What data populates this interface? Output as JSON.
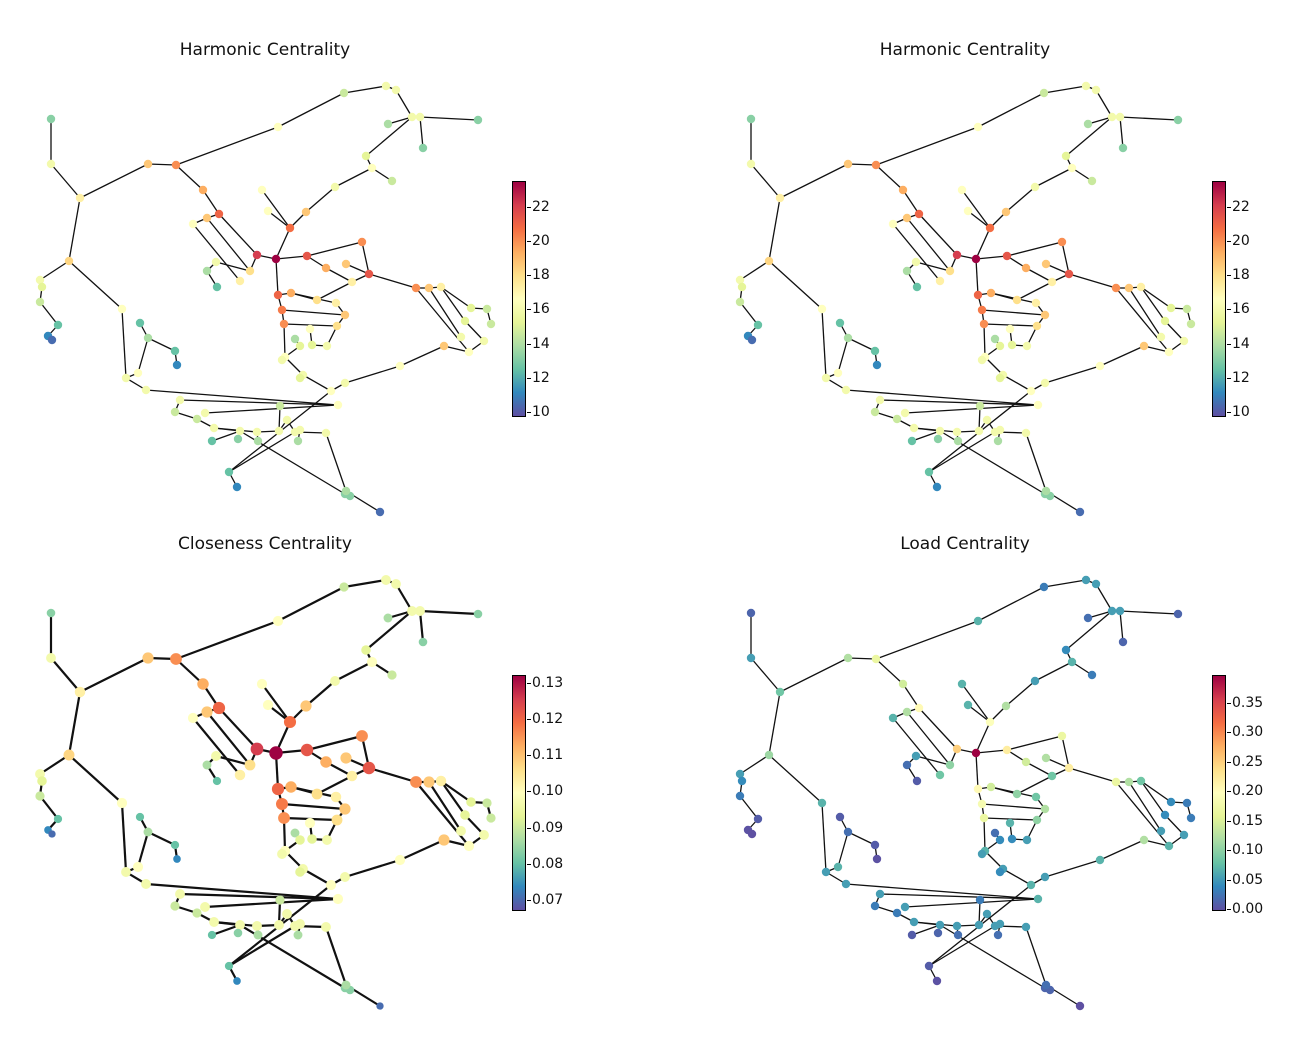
{
  "colormap": [
    "#5e4fa2",
    "#3288bd",
    "#66c2a5",
    "#abdda4",
    "#e6f598",
    "#ffffbf",
    "#fee08b",
    "#fdae61",
    "#f46d43",
    "#d53e4f",
    "#9e0142"
  ],
  "panels": [
    {
      "title": "Harmonic Centrality",
      "cbar_ticks": [
        "22",
        "20",
        "18",
        "16",
        "14",
        "12",
        "10"
      ]
    },
    {
      "title": "Harmonic Centrality",
      "cbar_ticks": [
        "22",
        "20",
        "18",
        "16",
        "14",
        "12",
        "10"
      ]
    },
    {
      "title": "Closeness Centrality",
      "cbar_ticks": [
        "0.13",
        "0.12",
        "0.11",
        "0.10",
        "0.09",
        "0.08",
        "0.07"
      ]
    },
    {
      "title": "Load Centrality",
      "cbar_ticks": [
        "0.35",
        "0.30",
        "0.25",
        "0.20",
        "0.15",
        "0.10",
        "0.05",
        "0.00"
      ]
    }
  ]
}
